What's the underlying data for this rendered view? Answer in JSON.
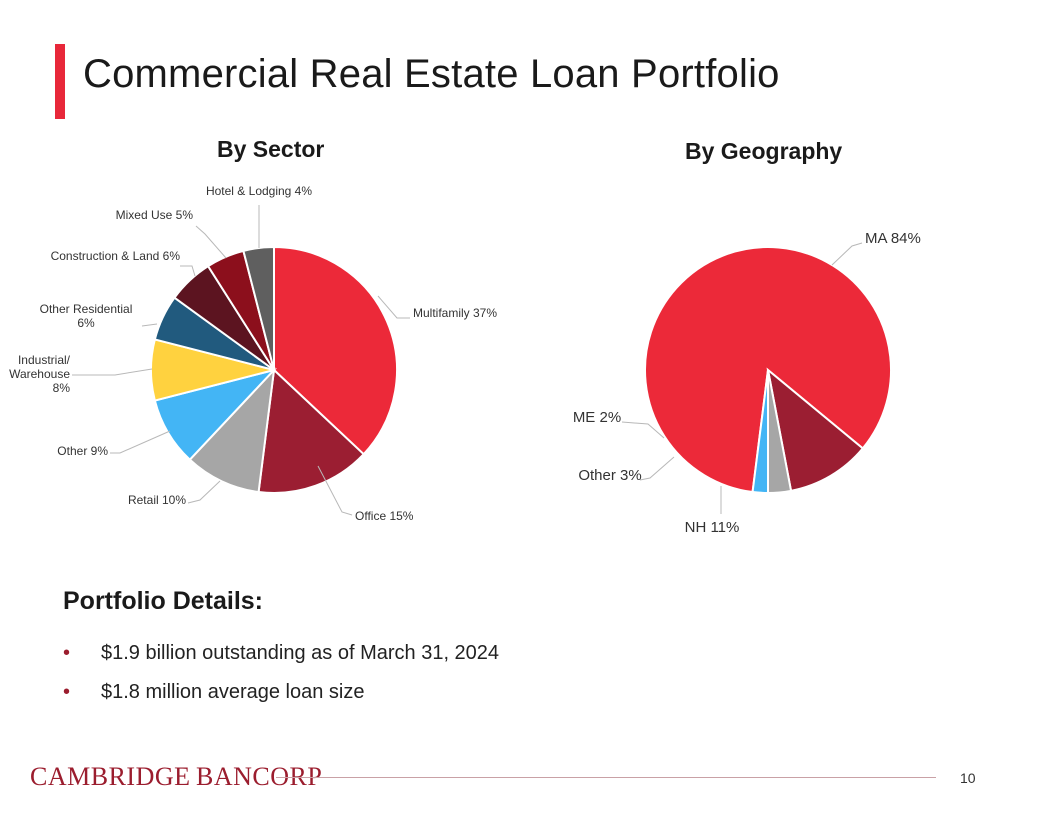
{
  "slide": {
    "title": "Commercial Real Estate Loan Portfolio",
    "accent_color": "#E8283A",
    "page_number": "10"
  },
  "chart_data": [
    {
      "type": "pie",
      "title": "By Sector",
      "slices": [
        {
          "label": "Multifamily 37%",
          "name": "Multifamily",
          "value": 37,
          "color": "#EC2939"
        },
        {
          "label": "Office 15%",
          "name": "Office",
          "value": 15,
          "color": "#9B1E32"
        },
        {
          "label": "Retail 10%",
          "name": "Retail",
          "value": 10,
          "color": "#A6A6A6"
        },
        {
          "label": "Other 9%",
          "name": "Other",
          "value": 9,
          "color": "#43B5F5"
        },
        {
          "label": "Industrial/\nWarehouse\n8%",
          "name": "Industrial/Warehouse",
          "value": 8,
          "color": "#FFD23F"
        },
        {
          "label": "Other Residential\n6%",
          "name": "Other Residential",
          "value": 6,
          "color": "#215A7E"
        },
        {
          "label": "Construction & Land 6%",
          "name": "Construction & Land",
          "value": 6,
          "color": "#5C1420"
        },
        {
          "label": "Mixed Use 5%",
          "name": "Mixed Use",
          "value": 5,
          "color": "#8C0F1C"
        },
        {
          "label": "Hotel & Lodging 4%",
          "name": "Hotel & Lodging",
          "value": 4,
          "color": "#5F5F5F"
        }
      ]
    },
    {
      "type": "pie",
      "title": "By Geography",
      "slices": [
        {
          "label": "MA 84%",
          "name": "MA",
          "value": 84,
          "color": "#EC2939"
        },
        {
          "label": "NH 11%",
          "name": "NH",
          "value": 11,
          "color": "#9B1E32"
        },
        {
          "label": "Other 3%",
          "name": "Other",
          "value": 3,
          "color": "#A6A6A6"
        },
        {
          "label": "ME 2%",
          "name": "ME",
          "value": 2,
          "color": "#43B5F5"
        }
      ]
    }
  ],
  "details": {
    "heading": "Portfolio Details:",
    "bullet_glyph": "•",
    "bullets": [
      "$1.9 billion outstanding as of March 31, 2024",
      "$1.8 million average loan size"
    ]
  },
  "footer": {
    "logo_text": "Cambridge Bancorp",
    "logo_color": "#9B1D2E"
  }
}
